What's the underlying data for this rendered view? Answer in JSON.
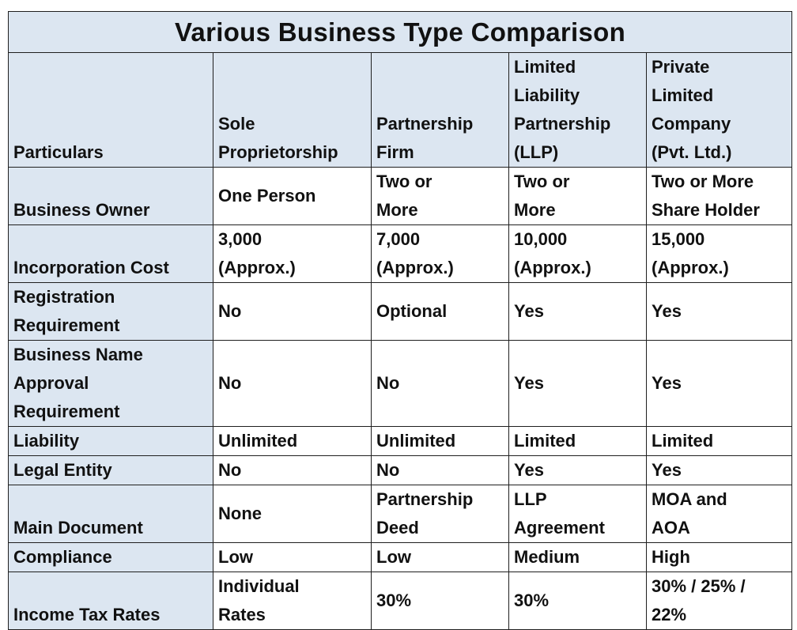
{
  "title": "Various Business Type Comparison",
  "columns": [
    "Particulars",
    "Sole\nProprietorship",
    "Partnership\nFirm",
    "Limited\nLiability\nPartnership\n(LLP)",
    "Private\nLimited\nCompany\n(Pvt. Ltd.)"
  ],
  "rows": [
    {
      "label": "Business Owner",
      "cells": [
        "One Person",
        "Two or\nMore",
        "Two or\nMore",
        "Two or More\nShare Holder"
      ]
    },
    {
      "label": "Incorporation Cost",
      "cells": [
        "3,000\n(Approx.)",
        "7,000\n(Approx.)",
        "10,000\n(Approx.)",
        "15,000\n(Approx.)"
      ]
    },
    {
      "label": "Registration\nRequirement",
      "cells": [
        "No",
        "Optional",
        "Yes",
        "Yes"
      ]
    },
    {
      "label": "Business Name\nApproval\nRequirement",
      "cells": [
        "No",
        "No",
        "Yes",
        "Yes"
      ]
    },
    {
      "label": "Liability",
      "cells": [
        "Unlimited",
        "Unlimited",
        "Limited",
        "Limited"
      ]
    },
    {
      "label": "Legal Entity",
      "cells": [
        "No",
        "No",
        "Yes",
        "Yes"
      ]
    },
    {
      "label": "Main Document",
      "cells": [
        "None",
        "Partnership\nDeed",
        "LLP\nAgreement",
        "MOA and\nAOA"
      ]
    },
    {
      "label": "Compliance",
      "cells": [
        "Low",
        "Low",
        "Medium",
        "High"
      ]
    },
    {
      "label": "Income Tax Rates",
      "cells": [
        "Individual\nRates",
        "30%",
        "30%",
        "30% / 25% /\n22%"
      ]
    }
  ],
  "colors": {
    "header_fill": "#dce6f1",
    "border": "#1f1f1f"
  }
}
